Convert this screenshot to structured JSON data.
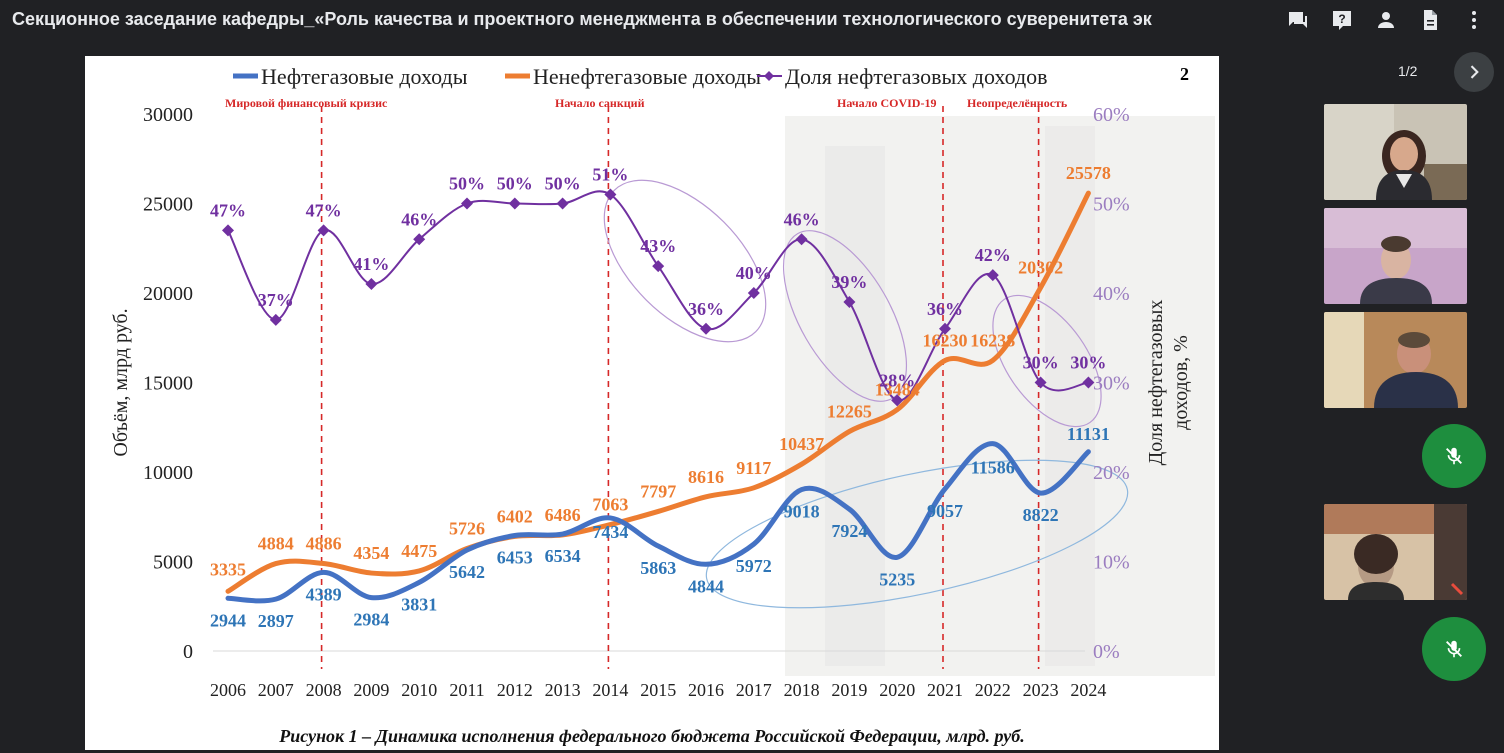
{
  "meeting": {
    "title": "Секционное заседание кафедры_«Роль качества и проектного менеджмента в обеспечении технологического суверенитета эк"
  },
  "top_icons": [
    "chat-icon",
    "help-icon",
    "people-icon",
    "document-icon",
    "more-vert-icon"
  ],
  "presentation": {
    "page_indicator": "1/2",
    "slide_number": "2",
    "caption": "Рисунок 1 – Динамика исполнения федерального бюджета Российской Федерации, млрд. руб."
  },
  "participants": [
    {
      "kind": "video",
      "tile": "participant-1"
    },
    {
      "kind": "video",
      "tile": "participant-2"
    },
    {
      "kind": "video",
      "tile": "participant-3"
    },
    {
      "kind": "muted-mic",
      "tile": "mic-off-1"
    },
    {
      "kind": "video",
      "tile": "participant-4"
    },
    {
      "kind": "muted-mic",
      "tile": "mic-off-2"
    }
  ],
  "colors": {
    "oil_gas": "#4472c4",
    "non_oil_gas": "#ed7d31",
    "share": "#7030a0",
    "event_line": "#d62828",
    "mic_green": "#1e8e3e"
  },
  "chart_data": {
    "type": "line",
    "x": [
      "2006",
      "2007",
      "2008",
      "2009",
      "2010",
      "2011",
      "2012",
      "2013",
      "2014",
      "2015",
      "2016",
      "2017",
      "2018",
      "2019",
      "2020",
      "2021",
      "2022",
      "2023",
      "2024"
    ],
    "series": [
      {
        "name": "Нефтегазовые доходы",
        "axis": "left",
        "values": [
          2944,
          2897,
          4389,
          2984,
          3831,
          5642,
          6453,
          6534,
          7434,
          5863,
          4844,
          5972,
          9018,
          7924,
          5235,
          9057,
          11586,
          8822,
          11131
        ],
        "labels": [
          "2944",
          "2897",
          "4389",
          "2984",
          "3831",
          "5642",
          "6453",
          "6534",
          "7434",
          "5863",
          "4844",
          "5972",
          "9018",
          "7924",
          "5235",
          "9057",
          "11586",
          "8822",
          "11131"
        ]
      },
      {
        "name": "Ненефтегазовые доходы",
        "axis": "left",
        "values": [
          3335,
          4884,
          4886,
          4354,
          4475,
          5726,
          6402,
          6486,
          7063,
          7797,
          8616,
          9117,
          10437,
          12265,
          13484,
          16230,
          16238,
          20302,
          25578
        ],
        "labels": [
          "3335",
          "4884",
          "4886",
          "4354",
          "4475",
          "5726",
          "6402",
          "6486",
          "7063",
          "7797",
          "8616",
          "9117",
          "10437",
          "12265",
          "13484",
          "16230",
          "16238",
          "20302",
          "25578"
        ]
      },
      {
        "name": "Доля нефтегазовых доходов",
        "axis": "right",
        "values": [
          47,
          37,
          47,
          41,
          46,
          50,
          50,
          50,
          51,
          43,
          36,
          40,
          46,
          39,
          28,
          36,
          42,
          30,
          30
        ],
        "labels": [
          "47%",
          "37%",
          "47%",
          "41%",
          "46%",
          "50%",
          "50%",
          "50%",
          "51%",
          "43%",
          "36%",
          "40%",
          "46%",
          "39%",
          "28%",
          "36%",
          "42%",
          "30%",
          "30%"
        ]
      }
    ],
    "y_left": {
      "label": "Объём, млрд руб.",
      "ticks": [
        "0",
        "5000",
        "10000",
        "15000",
        "20000",
        "25000",
        "30000"
      ],
      "range": [
        0,
        30000
      ]
    },
    "y_right": {
      "label_line1": "Доля нефтегазовых",
      "label_line2": "доходов, %",
      "ticks": [
        "0%",
        "10%",
        "20%",
        "30%",
        "40%",
        "50%",
        "60%"
      ],
      "range": [
        0,
        60
      ]
    },
    "events": [
      {
        "year": "2008",
        "label": "Мировой финансовый кризис"
      },
      {
        "year": "2014",
        "label": "Начало санкций"
      },
      {
        "year": "2021",
        "label": "Начало COVID-19"
      },
      {
        "year": "2023",
        "label": "Неопределённость"
      }
    ],
    "legend_position": "top",
    "grid": false
  }
}
